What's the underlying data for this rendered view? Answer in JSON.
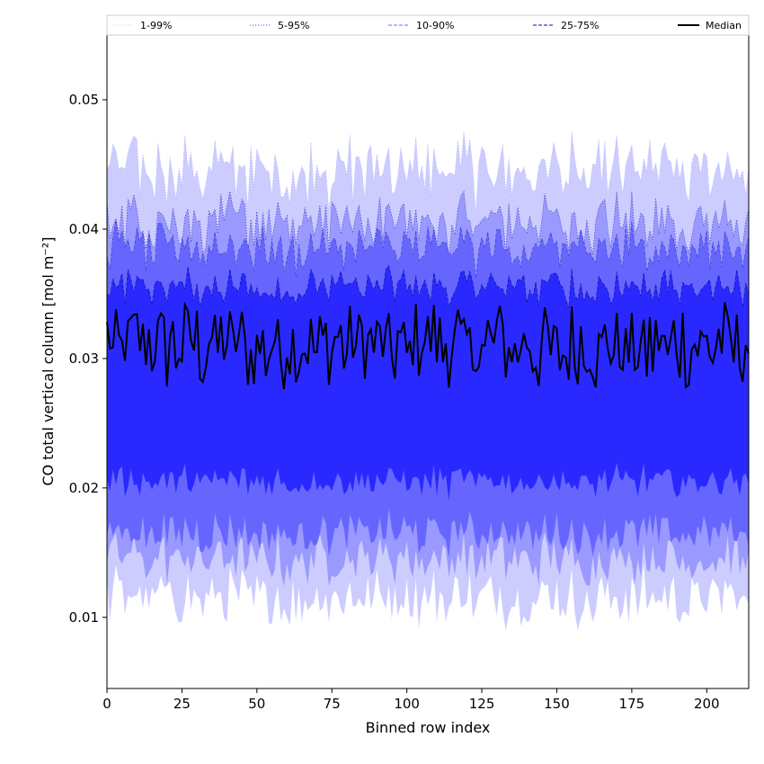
{
  "chart_data": {
    "type": "area",
    "title": "",
    "xlabel": "Binned row index",
    "ylabel": "CO total vertical column [mol m⁻²]",
    "xlim": [
      0,
      214
    ],
    "ylim": [
      0.0045,
      0.055
    ],
    "xticks": [
      0,
      25,
      50,
      75,
      100,
      125,
      150,
      175,
      200
    ],
    "yticks": [
      0.01,
      0.02,
      0.03,
      0.04,
      0.05
    ],
    "ytick_labels": [
      "0.01",
      "0.02",
      "0.03",
      "0.04",
      "0.05"
    ],
    "legend_placement": "top, horizontal",
    "legend": [
      {
        "label": "1-99%",
        "style": "dotted",
        "color": "#ccccff"
      },
      {
        "label": "5-95%",
        "style": "dotted",
        "color": "#4444ff"
      },
      {
        "label": "10-90%",
        "style": "dashed",
        "color": "#8888ff"
      },
      {
        "label": "25-75%",
        "style": "dashed",
        "color": "#3333ee"
      },
      {
        "label": "Median",
        "style": "solid",
        "color": "#000000"
      }
    ],
    "bands": [
      {
        "name": "1-99%",
        "color": "#ccccff",
        "lower_mean": 0.0115,
        "upper_mean": 0.0445
      },
      {
        "name": "5-95%",
        "color": "#9999ff",
        "lower_mean": 0.0145,
        "upper_mean": 0.0405
      },
      {
        "name": "10-90%",
        "color": "#6666ff",
        "lower_mean": 0.0165,
        "upper_mean": 0.0385
      },
      {
        "name": "25-75%",
        "color": "#2929ff",
        "lower_mean": 0.0205,
        "upper_mean": 0.0355
      }
    ],
    "median_mean": 0.031,
    "n_points": 215,
    "grid": false
  }
}
